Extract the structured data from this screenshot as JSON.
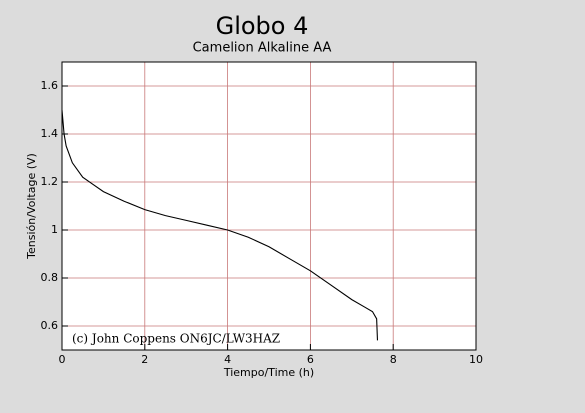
{
  "chart_data": {
    "type": "line",
    "title": "Globo 4",
    "subtitle": "Camelion Alkaline AA",
    "x_label": "Tiempo/Time (h)",
    "y_label": "Tensión/Voltage (V)",
    "annotation": "(c) John Coppens ON6JC/LW3HAZ",
    "x": [
      0,
      0.05,
      0.1,
      0.25,
      0.5,
      0.75,
      1,
      1.5,
      2,
      2.5,
      3,
      3.5,
      4,
      4.5,
      5,
      5.5,
      6,
      6.5,
      7,
      7.3,
      7.5,
      7.6,
      7.62
    ],
    "series": [
      {
        "color": "#000000",
        "values": [
          1.5,
          1.4,
          1.35,
          1.28,
          1.22,
          1.19,
          1.16,
          1.12,
          1.085,
          1.06,
          1.04,
          1.02,
          1.0,
          0.97,
          0.93,
          0.88,
          0.83,
          0.77,
          0.71,
          0.68,
          0.66,
          0.63,
          0.54
        ]
      }
    ],
    "xlim": [
      0,
      10
    ],
    "xticks": [
      0,
      2,
      4,
      6,
      8,
      10
    ],
    "ylim": [
      0.5,
      1.7
    ],
    "yticks": [
      0.6,
      0.8,
      1,
      1.2,
      1.4,
      1.6
    ],
    "grid": true,
    "grid_color": "#c87878"
  }
}
